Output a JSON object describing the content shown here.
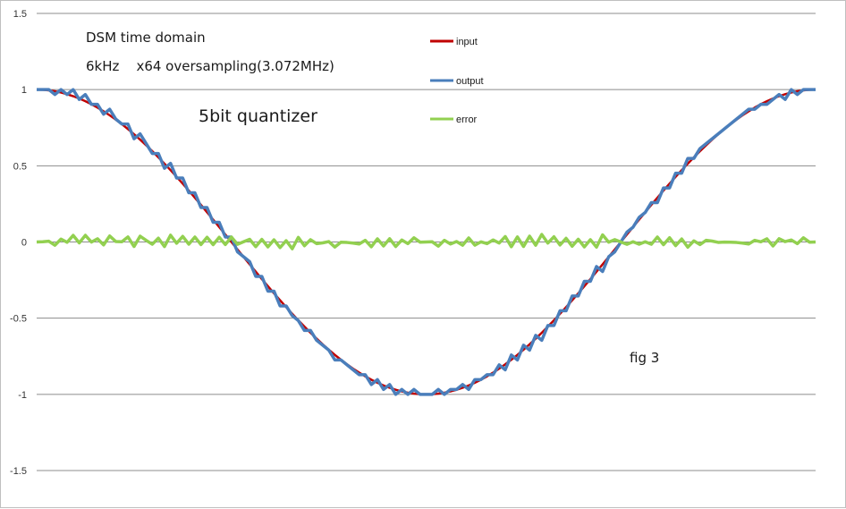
{
  "chart_data": {
    "type": "line",
    "title": "",
    "xlabel": "",
    "ylabel": "",
    "ylim": [
      -1.5,
      1.5
    ],
    "yticks": [
      "1.5",
      "1",
      "0.5",
      "0",
      "-0.5",
      "-1",
      "-1.5"
    ],
    "ytick_values": [
      1.5,
      1,
      0.5,
      0,
      -0.5,
      -1,
      -1.5
    ],
    "grid": "horizontal",
    "legend_position": "top-center",
    "x_points": 129,
    "annotations": {
      "line1": "DSM  time domain",
      "line2": "6kHz    x64 oversampling(3.072MHz)",
      "quantizer": "5bit quantizer",
      "fig": "fig 3"
    },
    "series": [
      {
        "name": "input",
        "color": "#c00000",
        "description_values": "cosine, one period over 128 samples",
        "values": [
          1.0,
          0.9988,
          0.9952,
          0.9892,
          0.9808,
          0.97,
          0.9569,
          0.9415,
          0.9239,
          0.904,
          0.8819,
          0.8577,
          0.8315,
          0.8032,
          0.773,
          0.741,
          0.7071,
          0.6716,
          0.6344,
          0.5957,
          0.5556,
          0.5141,
          0.4714,
          0.4276,
          0.3827,
          0.3369,
          0.2903,
          0.243,
          0.1951,
          0.1467,
          0.098,
          0.0491,
          0.0,
          -0.0491,
          -0.098,
          -0.1467,
          -0.1951,
          -0.243,
          -0.2903,
          -0.3369,
          -0.3827,
          -0.4276,
          -0.4714,
          -0.5141,
          -0.5556,
          -0.5957,
          -0.6344,
          -0.6716,
          -0.7071,
          -0.741,
          -0.773,
          -0.8032,
          -0.8315,
          -0.8577,
          -0.8819,
          -0.904,
          -0.9239,
          -0.9415,
          -0.9569,
          -0.97,
          -0.9808,
          -0.9892,
          -0.9952,
          -0.9988,
          -1.0,
          -0.9988,
          -0.9952,
          -0.9892,
          -0.9808,
          -0.97,
          -0.9569,
          -0.9415,
          -0.9239,
          -0.904,
          -0.8819,
          -0.8577,
          -0.8315,
          -0.8032,
          -0.773,
          -0.741,
          -0.7071,
          -0.6716,
          -0.6344,
          -0.5957,
          -0.5556,
          -0.5141,
          -0.4714,
          -0.4276,
          -0.3827,
          -0.3369,
          -0.2903,
          -0.243,
          -0.1951,
          -0.1467,
          -0.098,
          -0.0491,
          0.0,
          0.0491,
          0.098,
          0.1467,
          0.1951,
          0.243,
          0.2903,
          0.3369,
          0.3827,
          0.4276,
          0.4714,
          0.5141,
          0.5556,
          0.5957,
          0.6344,
          0.6716,
          0.7071,
          0.741,
          0.773,
          0.8032,
          0.8315,
          0.8577,
          0.8819,
          0.904,
          0.9239,
          0.9415,
          0.9569,
          0.97,
          0.9808,
          0.9892,
          0.9952,
          0.9988,
          1.0
        ]
      },
      {
        "name": "output",
        "color": "#4a7ebb",
        "values": [
          1.0,
          1.0,
          1.0,
          0.9677,
          1.0,
          0.9677,
          1.0,
          0.9355,
          0.9677,
          0.9032,
          0.9032,
          0.8387,
          0.871,
          0.8065,
          0.7742,
          0.7742,
          0.6774,
          0.7097,
          0.6452,
          0.5806,
          0.5806,
          0.4839,
          0.5161,
          0.4194,
          0.4194,
          0.3226,
          0.3226,
          0.2258,
          0.2258,
          0.129,
          0.129,
          0.0323,
          0.0323,
          -0.0645,
          -0.0968,
          -0.129,
          -0.2258,
          -0.2258,
          -0.3226,
          -0.3226,
          -0.4194,
          -0.4194,
          -0.4839,
          -0.5161,
          -0.5806,
          -0.5806,
          -0.6452,
          -0.6774,
          -0.7097,
          -0.7742,
          -0.7742,
          -0.8065,
          -0.8387,
          -0.871,
          -0.871,
          -0.9355,
          -0.9032,
          -0.9677,
          -0.9355,
          -1.0,
          -0.9677,
          -1.0,
          -0.9677,
          -1.0,
          -1.0,
          -1.0,
          -0.9677,
          -1.0,
          -0.9677,
          -0.9677,
          -0.9355,
          -0.9677,
          -0.9032,
          -0.9032,
          -0.871,
          -0.871,
          -0.8065,
          -0.8387,
          -0.7419,
          -0.7742,
          -0.6774,
          -0.7097,
          -0.6129,
          -0.6452,
          -0.5484,
          -0.5484,
          -0.4516,
          -0.4516,
          -0.3548,
          -0.3548,
          -0.2581,
          -0.2581,
          -0.1613,
          -0.1935,
          -0.0968,
          -0.0645,
          0.0,
          0.0645,
          0.0968,
          0.1613,
          0.1935,
          0.2581,
          0.2581,
          0.3548,
          0.3548,
          0.4516,
          0.4516,
          0.5484,
          0.5484,
          0.6129,
          0.6452,
          0.6774,
          0.7097,
          0.7419,
          0.7742,
          0.8065,
          0.8387,
          0.871,
          0.871,
          0.9032,
          0.9032,
          0.9355,
          0.9677,
          0.9355,
          1.0,
          0.9677,
          1.0,
          1.0,
          1.0
        ]
      },
      {
        "name": "error",
        "color": "#92d050",
        "values": [
          0.0,
          0.0012,
          0.0048,
          -0.0215,
          0.0192,
          -0.0023,
          0.0431,
          -0.006,
          0.0438,
          -0.0008,
          0.0213,
          -0.019,
          0.0395,
          0.0033,
          0.0012,
          0.0332,
          -0.0297,
          0.0381,
          0.0108,
          -0.0151,
          0.025,
          -0.0302,
          0.0447,
          -0.0082,
          0.0367,
          -0.0143,
          0.0323,
          -0.0172,
          0.0307,
          -0.0177,
          0.031,
          -0.0168,
          0.0323,
          -0.0154,
          0.0012,
          0.0177,
          -0.0307,
          0.0172,
          -0.0323,
          0.0143,
          -0.0367,
          0.0082,
          -0.0447,
          0.0302,
          -0.025,
          0.0151,
          -0.0108,
          -0.0058,
          0.0026,
          -0.0332,
          -0.0012,
          -0.0033,
          -0.0072,
          -0.0133,
          0.0109,
          -0.0315,
          0.0207,
          -0.0262,
          0.0214,
          -0.03,
          0.0131,
          -0.0108,
          0.0275,
          -0.0012,
          0.0,
          0.0012,
          -0.0275,
          0.0108,
          -0.0131,
          0.003,
          -0.0214,
          0.0262,
          -0.0207,
          0.0008,
          -0.0109,
          0.0133,
          -0.0072,
          0.0355,
          -0.0311,
          0.0332,
          -0.0297,
          0.0381,
          -0.0215,
          0.0495,
          -0.0072,
          0.0343,
          -0.0198,
          0.024,
          -0.0279,
          0.0179,
          -0.0322,
          0.0151,
          -0.0338,
          0.0468,
          -0.0012,
          0.0154,
          0.0,
          -0.0154,
          0.0012,
          -0.0146,
          0.0016,
          -0.0151,
          0.0322,
          -0.0179,
          0.0279,
          -0.024,
          0.0198,
          -0.0343,
          0.0072,
          -0.0172,
          0.0108,
          0.0058,
          -0.0026,
          -0.0009,
          -0.0012,
          -0.0033,
          -0.0072,
          -0.0133,
          0.0109,
          0.0008,
          0.0207,
          -0.0262,
          0.0214,
          0.0023,
          0.0131,
          -0.0108,
          0.0275,
          -0.0012,
          0.0
        ]
      }
    ]
  }
}
